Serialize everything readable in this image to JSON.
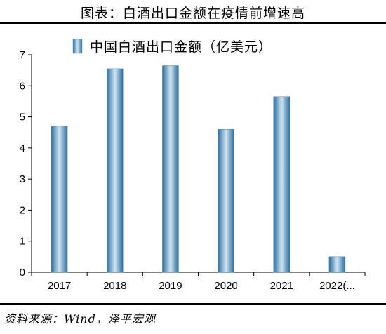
{
  "figure_title": "图表：白酒出口金额在疫情前增速高",
  "source": "资料来源：Wind，泽平宏观",
  "colors": {
    "bar_light": "#cfe3f1",
    "bar_mid": "#5f9dc9",
    "bar_dark": "#2f6f9f",
    "axis": "#000000"
  },
  "chart_data": {
    "type": "bar",
    "categories": [
      "2017",
      "2018",
      "2019",
      "2020",
      "2021",
      "2022(..."
    ],
    "series": [
      {
        "name": "中国白酒出口金额（亿美元）",
        "values": [
          4.7,
          6.55,
          6.65,
          4.6,
          5.65,
          0.5
        ]
      }
    ],
    "ylim": [
      0,
      7
    ],
    "yticks": [
      "0",
      "1",
      "2",
      "3",
      "4",
      "5",
      "6",
      "7"
    ],
    "grid": false,
    "legend": "top"
  }
}
